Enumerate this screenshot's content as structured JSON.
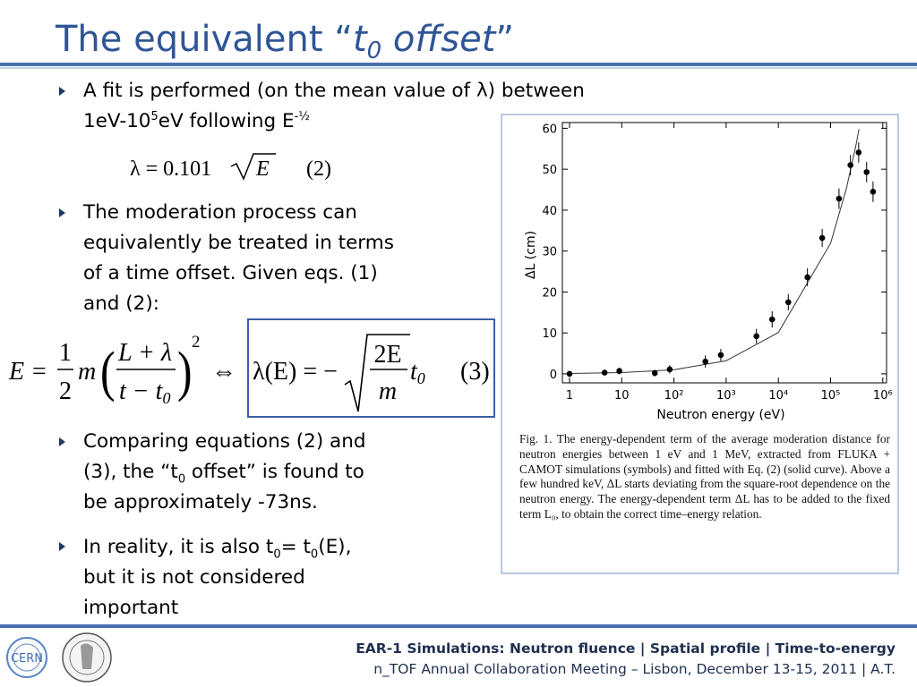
{
  "title": {
    "prefix": "The equivalent “",
    "var": "t",
    "sub": "0",
    "word": " offset",
    "suffix": "”"
  },
  "bullets": [
    [
      [
        "A fit is performed (on the mean value of λ) between"
      ],
      [
        "1eV-10",
        {
          "sup": "5"
        },
        "eV following E",
        {
          "sup": "-½"
        }
      ]
    ],
    [
      [
        "The moderation process can"
      ],
      [
        "equivalently be treated in terms"
      ],
      [
        "of a time offset. Given eqs. (1)"
      ],
      [
        "and (2):"
      ]
    ],
    [
      [
        "Comparing equations (2) and"
      ],
      [
        "(3), the “t",
        {
          "sub": "0"
        },
        " offset” is found to"
      ],
      [
        "be approximately -73ns."
      ]
    ],
    [
      [
        "In reality, it is also t",
        {
          "sub": "0"
        },
        "= t",
        {
          "sub": "0"
        },
        "(E),"
      ],
      [
        "but it is not considered"
      ],
      [
        "important"
      ]
    ]
  ],
  "eq2": {
    "lhs": "λ = 0.101",
    "radicand": "E",
    "tag": "(2)"
  },
  "eq3": {
    "lhs": "E =",
    "f_num": "1",
    "f_den": "2",
    "m": "m",
    "lp": "(",
    "num": "L + λ",
    "den": "t − t",
    "den_sub": "0",
    "rp": ")",
    "exp": "2",
    "iff": "⇔",
    "rhs": "λ(E) = −",
    "r_num": "2E",
    "r_den": "m",
    "t": "t",
    "t_sub": "0",
    "tag": "(3)"
  },
  "figure": {
    "type": "scatter",
    "xlabel": "Neutron energy (eV)",
    "ylabel": "ΔL (cm)",
    "xlog": true,
    "xlim": [
      0.73,
      1180000
    ],
    "ylim": [
      -2.2,
      61.4
    ],
    "xticks": [
      1,
      10,
      {
        "value": 100,
        "label": "10²"
      },
      {
        "value": 1000,
        "label": "10³"
      },
      {
        "value": 10000,
        "label": "10⁴"
      },
      {
        "value": 100000,
        "label": "10⁵"
      },
      {
        "value": 1000000,
        "label": "10⁶"
      }
    ],
    "yticks": [
      0,
      10,
      20,
      30,
      40,
      50,
      60
    ],
    "color": "#000000",
    "x": [
      1,
      4.7,
      9,
      43,
      83,
      400,
      790,
      3800,
      7600,
      15500,
      36000,
      69000,
      145000,
      240000,
      345000,
      490000,
      650000
    ],
    "y": [
      0,
      0.3,
      0.7,
      0.2,
      1.1,
      3.0,
      4.6,
      9.2,
      13.3,
      17.5,
      23.6,
      33.2,
      42.8,
      51.0,
      54.1,
      49.3,
      44.5
    ],
    "err": [
      0.6,
      0.6,
      0.8,
      0.8,
      1.0,
      1.5,
      1.5,
      1.8,
      2.0,
      2.0,
      2.2,
      2.2,
      2.5,
      2.5,
      2.5,
      2.5,
      2.5
    ],
    "curve": {
      "x": [
        1,
        10,
        100,
        1000,
        10000,
        100000,
        200000,
        300000,
        350000
      ],
      "y": [
        0.1,
        0.32,
        1.0,
        3.2,
        10.1,
        31.9,
        45.2,
        55.3,
        59.8
      ]
    },
    "caption": "Fig. 1. The energy-dependent term of the average moderation distance for neutron energies between 1 eV and 1 MeV, extracted from FLUKA + CAMOT simulations (symbols) and fitted with Eq. (2) (solid curve). Above a few hundred keV, ΔL starts deviating from the square-root dependence on the neutron energy. The energy-dependent term ΔL has to be added to the fixed term L₀, to obtain the correct time–energy relation."
  },
  "footer": {
    "line1": "EAR-1 Simulations: Neutron fluence | Spatial profile | Time-to-energy",
    "line2": "n_TOF Annual Collaboration Meeting – Lisbon, December 13-15, 2011 | A.T."
  },
  "logo": {
    "text": "CERN"
  }
}
